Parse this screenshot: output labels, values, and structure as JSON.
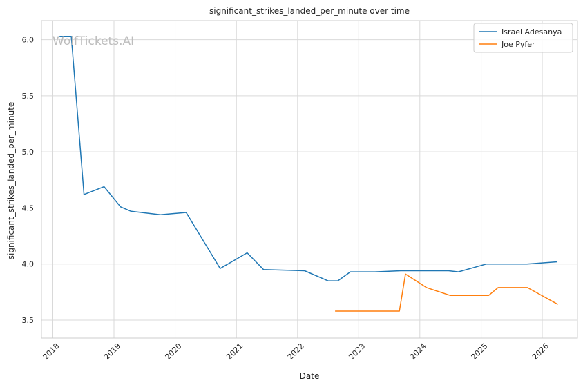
{
  "watermark": "WolfTickets.AI",
  "chart_data": {
    "type": "line",
    "title": "significant_strikes_landed_per_minute over time",
    "xlabel": "Date",
    "ylabel": "significant_strikes_landed_per_minute",
    "xlim": [
      "2017-10-25",
      "2026-07-30"
    ],
    "ylim": [
      3.34,
      6.17
    ],
    "x_ticks": [
      "2018",
      "2019",
      "2020",
      "2021",
      "2022",
      "2023",
      "2024",
      "2025",
      "2026"
    ],
    "y_ticks": [
      "3.5",
      "4.0",
      "4.5",
      "5.0",
      "5.5",
      "6.0"
    ],
    "grid": true,
    "legend_position": "top-right",
    "series": [
      {
        "name": "Israel Adesanya",
        "color": "#1f77b4",
        "points": [
          [
            "2018-02-10",
            6.03
          ],
          [
            "2018-04-21",
            6.03
          ],
          [
            "2018-07-06",
            4.62
          ],
          [
            "2018-11-03",
            4.69
          ],
          [
            "2019-02-09",
            4.51
          ],
          [
            "2019-04-13",
            4.47
          ],
          [
            "2019-10-05",
            4.44
          ],
          [
            "2020-03-07",
            4.46
          ],
          [
            "2020-09-26",
            3.96
          ],
          [
            "2021-03-06",
            4.1
          ],
          [
            "2021-06-12",
            3.95
          ],
          [
            "2022-02-12",
            3.94
          ],
          [
            "2022-07-02",
            3.85
          ],
          [
            "2022-08-29",
            3.85
          ],
          [
            "2022-11-12",
            3.93
          ],
          [
            "2023-04-08",
            3.93
          ],
          [
            "2023-09-10",
            3.94
          ],
          [
            "2024-06-20",
            3.94
          ],
          [
            "2024-08-18",
            3.93
          ],
          [
            "2025-02-01",
            4.0
          ],
          [
            "2025-10-01",
            4.0
          ],
          [
            "2026-04-01",
            4.02
          ]
        ]
      },
      {
        "name": "Joe Pyfer",
        "color": "#ff7f0e",
        "points": [
          [
            "2022-08-13",
            3.58
          ],
          [
            "2023-09-01",
            3.58
          ],
          [
            "2023-10-07",
            3.91
          ],
          [
            "2024-02-10",
            3.79
          ],
          [
            "2024-06-29",
            3.72
          ],
          [
            "2025-02-15",
            3.72
          ],
          [
            "2025-04-12",
            3.79
          ],
          [
            "2025-10-04",
            3.79
          ],
          [
            "2026-04-04",
            3.64
          ]
        ]
      }
    ]
  }
}
